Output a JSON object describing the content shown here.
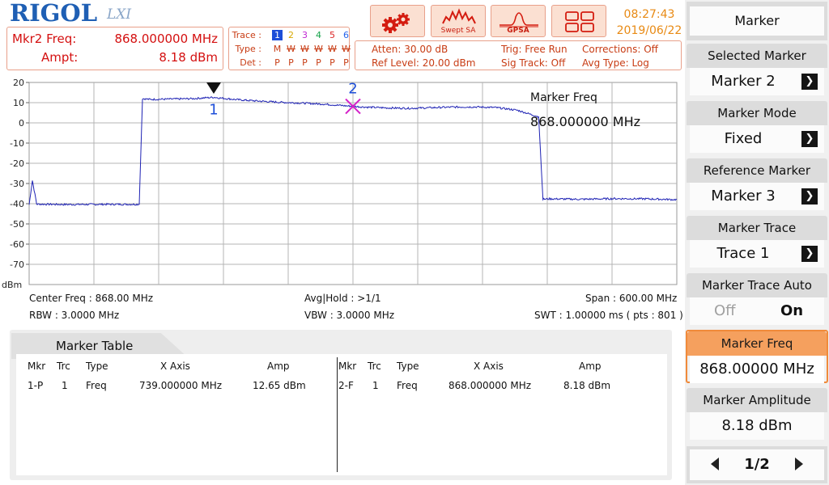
{
  "header": {
    "brand": "RIGOL",
    "brand_suffix": "LXI",
    "marker_readout": {
      "freq_label": "Mkr2 Freq:",
      "freq_value": "868.000000 MHz",
      "ampt_label": "Ampt:",
      "ampt_value": "8.18 dBm"
    },
    "trace_status": {
      "trace_label": "Trace :",
      "type_label": "Type :",
      "det_label": "Det :",
      "trace_numbers": [
        "1",
        "2",
        "3",
        "4",
        "5",
        "6"
      ],
      "trace_number_colors": [
        "#1d4ed8",
        "#d7a800",
        "#c026d3",
        "#16a34a",
        "#dc2626",
        "#2563eb"
      ],
      "types": [
        "M",
        "W",
        "W",
        "W",
        "W",
        "W"
      ],
      "dets": [
        "P",
        "P",
        "P",
        "P",
        "P",
        "P"
      ]
    },
    "status": {
      "atten": "Atten: 30.00 dB",
      "ref_level": "Ref Level: 20.00 dBm",
      "trig": "Trig: Free Run",
      "sig_track": "Sig Track: Off",
      "corrections": "Corrections: Off",
      "avg_type": "Avg Type: Log"
    },
    "toolbar": {
      "settings_icon": "gear-icon",
      "swept_sa_label": "Swept SA",
      "gpsa_label": "GPSA",
      "layout_icon": "grid-layout-icon"
    },
    "time": "08:27:43",
    "date": "2019/06/22"
  },
  "graph": {
    "y_ticks": [
      "20",
      "10",
      "0",
      "-10",
      "-20",
      "-30",
      "-40",
      "-50",
      "-60",
      "-70"
    ],
    "y_unit": "dBm",
    "markers": [
      {
        "label": "1",
        "color": "#1d4ed8",
        "freq_mhz": 739.0,
        "amp_dbm": 12.65
      },
      {
        "label": "2",
        "color": "#d420c8",
        "freq_mhz": 868.0,
        "amp_dbm": 8.18
      }
    ],
    "marker_freq_title": "Marker Freq",
    "marker_freq_value": "868.000000 MHz",
    "center_freq": "Center Freq : 868.00 MHz",
    "rbw": "RBW : 3.0000 MHz",
    "avg_hold": "Avg|Hold : >1/1",
    "vbw": "VBW : 3.0000 MHz",
    "span": "Span : 600.00 MHz",
    "swt": "SWT : 1.00000 ms ( pts : 801 )",
    "trace_color": "#1e22b4"
  },
  "chart_data": {
    "type": "line",
    "xlabel": "",
    "ylabel": "dBm",
    "x_range_mhz": [
      568,
      1168
    ],
    "ylim": [
      -80,
      20
    ],
    "grid": true,
    "series": [
      {
        "x": [
          568,
          571,
          575,
          600,
          640,
          670,
          673,
          680,
          700,
          720,
          739,
          760,
          780,
          800,
          820,
          840,
          868,
          880,
          900,
          920,
          940,
          960,
          980,
          1000,
          1020,
          1040,
          1044,
          1050,
          1080,
          1110,
          1140,
          1168
        ],
        "y": [
          -40.5,
          -28.5,
          -40.2,
          -40.4,
          -40.3,
          -40.3,
          12.0,
          11.6,
          11.8,
          12.0,
          12.65,
          11.5,
          10.8,
          10.2,
          9.8,
          9.3,
          8.18,
          7.8,
          7.4,
          7.2,
          7.5,
          7.8,
          7.9,
          7.6,
          6.3,
          3.0,
          -37.8,
          -37.6,
          -37.8,
          -37.5,
          -37.6,
          -38.0
        ]
      }
    ]
  },
  "marker_table": {
    "title": "Marker Table",
    "columns": [
      "Mkr",
      "Trc",
      "Type",
      "X Axis",
      "Amp"
    ],
    "rows": [
      {
        "mkr": "1-P",
        "trc": "1",
        "type": "Freq",
        "x": "739.000000 MHz",
        "amp": "12.65 dBm"
      },
      {
        "mkr": "2-F",
        "trc": "1",
        "type": "Freq",
        "x": "868.000000 MHz",
        "amp": "8.18 dBm"
      }
    ]
  },
  "panel": {
    "menu_title": "Marker",
    "selected_marker": {
      "label": "Selected Marker",
      "value": "Marker 2"
    },
    "marker_mode": {
      "label": "Marker Mode",
      "value": "Fixed"
    },
    "reference_marker": {
      "label": "Reference Marker",
      "value": "Marker 3"
    },
    "marker_trace": {
      "label": "Marker Trace",
      "value": "Trace 1"
    },
    "marker_trace_auto": {
      "label": "Marker Trace Auto",
      "off": "Off",
      "on": "On"
    },
    "marker_freq": {
      "label": "Marker Freq",
      "value": "868.00000 MHz"
    },
    "marker_amplitude": {
      "label": "Marker Amplitude",
      "value": "8.18 dBm"
    },
    "page": "1/2",
    "accent_color": "#f08a3a"
  }
}
